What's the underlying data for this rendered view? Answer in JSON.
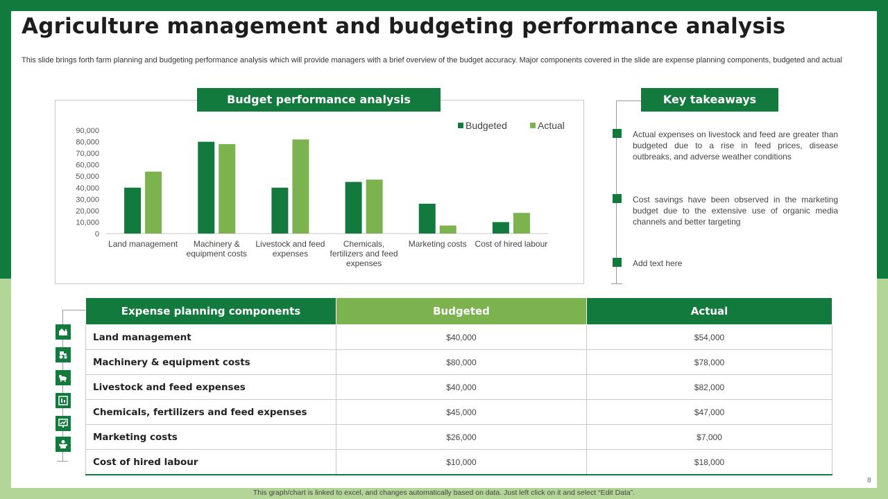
{
  "slide": {
    "title": "Agriculture management and budgeting performance analysis",
    "description": "This slide brings forth farm planning and budgeting performance analysis which will provide managers with a brief overview of the budget accuracy. Major components covered in the slide are expense planning components, budgeted and actual",
    "page_number": "8",
    "footer_note": "This graph/chart is linked to excel, and changes automatically based on data. Just left click on it and select “Edit Data”."
  },
  "chart_section": {
    "label": "Budget performance analysis"
  },
  "takeaways": {
    "label": "Key takeaways",
    "items": [
      "Actual expenses on livestock and feed are greater than budgeted due to a rise in feed prices, disease outbreaks, and adverse weather conditions",
      "Cost savings have been observed in the marketing budget due to the extensive use of organic media channels and better targeting",
      "Add text here"
    ]
  },
  "chart_data": {
    "type": "bar",
    "title": "Budget performance analysis",
    "categories": [
      [
        "Land management"
      ],
      [
        "Machinery &",
        "equipment costs"
      ],
      [
        "Livestock and feed",
        "expenses"
      ],
      [
        "Chemicals,",
        "fertilizers and feed",
        "expenses"
      ],
      [
        "Marketing costs"
      ],
      [
        "Cost of hired labour"
      ]
    ],
    "series": [
      {
        "name": "Budgeted",
        "color": "#137a3e",
        "values": [
          40000,
          80000,
          40000,
          45000,
          26000,
          10000
        ]
      },
      {
        "name": "Actual",
        "color": "#7cb34e",
        "values": [
          54000,
          78000,
          82000,
          47000,
          7000,
          18000
        ]
      }
    ],
    "yticks": [
      "0",
      "10,000",
      "20,000",
      "30,000",
      "40,000",
      "50,000",
      "60,000",
      "70,000",
      "80,000",
      "90,000"
    ],
    "ylim": [
      0,
      90000
    ],
    "xlabel": "",
    "ylabel": "",
    "legend_position": "top-right"
  },
  "table": {
    "headers": [
      "Expense planning components",
      "Budgeted",
      "Actual"
    ],
    "rows": [
      {
        "name": "Land management",
        "budgeted": "$40,000",
        "actual": "$54,000",
        "icon": "farm-field-icon"
      },
      {
        "name": "Machinery & equipment costs",
        "budgeted": "$80,000",
        "actual": "$78,000",
        "icon": "machinery-icon"
      },
      {
        "name": "Livestock and feed expenses",
        "budgeted": "$40,000",
        "actual": "$82,000",
        "icon": "livestock-icon"
      },
      {
        "name": "Chemicals, fertilizers and feed expenses",
        "budgeted": "$45,000",
        "actual": "$47,000",
        "icon": "chemicals-icon"
      },
      {
        "name": "Marketing costs",
        "budgeted": "$26,000",
        "actual": "$7,000",
        "icon": "marketing-chart-icon"
      },
      {
        "name": "Cost of hired labour",
        "budgeted": "$10,000",
        "actual": "$18,000",
        "icon": "labour-icon"
      }
    ]
  }
}
